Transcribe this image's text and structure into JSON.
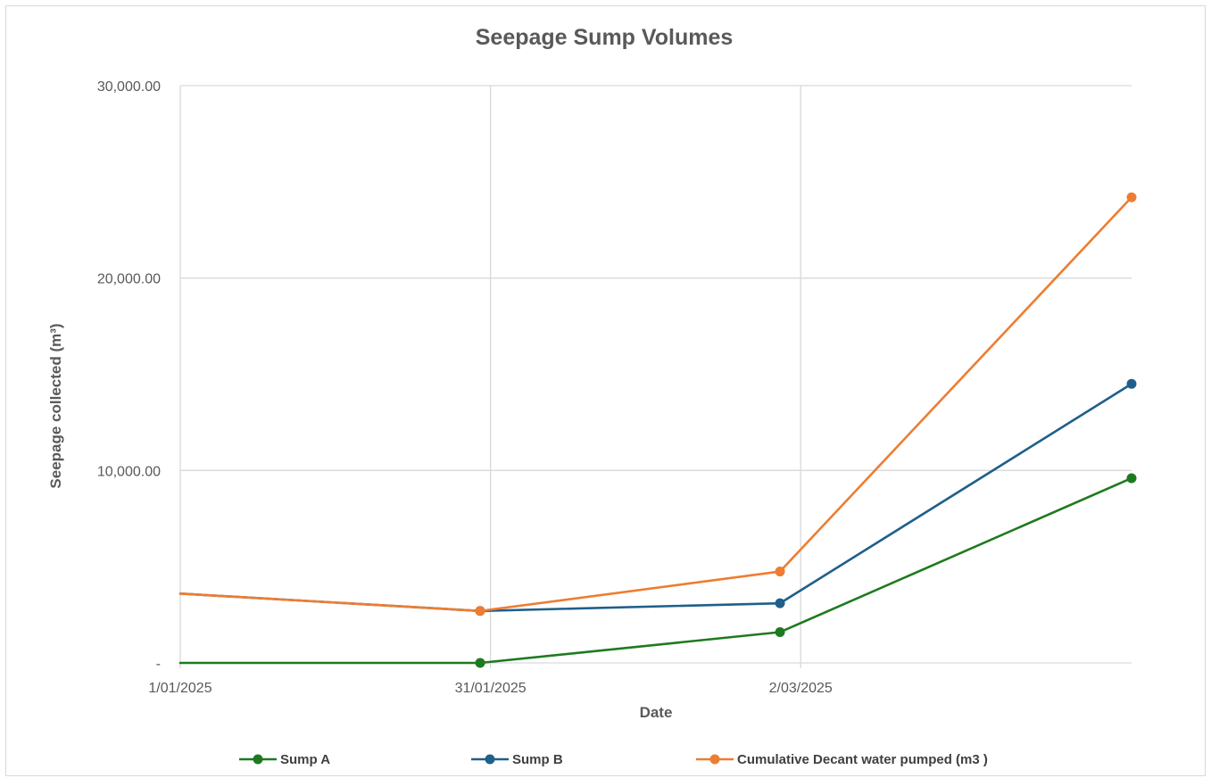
{
  "chart_data": {
    "type": "line",
    "title": "Seepage Sump Volumes",
    "xlabel": "Date",
    "ylabel": "Seepage collected (m³)",
    "x_ticks": [
      "1/01/2025",
      "31/01/2025",
      "2/03/2025"
    ],
    "y_ticks": [
      "-",
      "10,000.00",
      "20,000.00",
      "30,000.00"
    ],
    "ylim": [
      0,
      30000
    ],
    "xlim": [
      "2025-01-01",
      "2025-04-03"
    ],
    "x": [
      "2025-01-01",
      "2025-01-30",
      "2025-02-28",
      "2025-04-03"
    ],
    "grid": true,
    "legend_position": "bottom",
    "series": [
      {
        "name": "Sump A",
        "color": "#1e7a1e",
        "values": [
          0,
          0,
          1600,
          9600
        ]
      },
      {
        "name": "Sump B",
        "color": "#1f5f8b",
        "values": [
          3600,
          2700,
          3100,
          14500
        ]
      },
      {
        "name": "Cumulative Decant water pumped (m3 )",
        "color": "#ed7d31",
        "values": [
          3600,
          2700,
          4750,
          24200
        ]
      }
    ]
  }
}
